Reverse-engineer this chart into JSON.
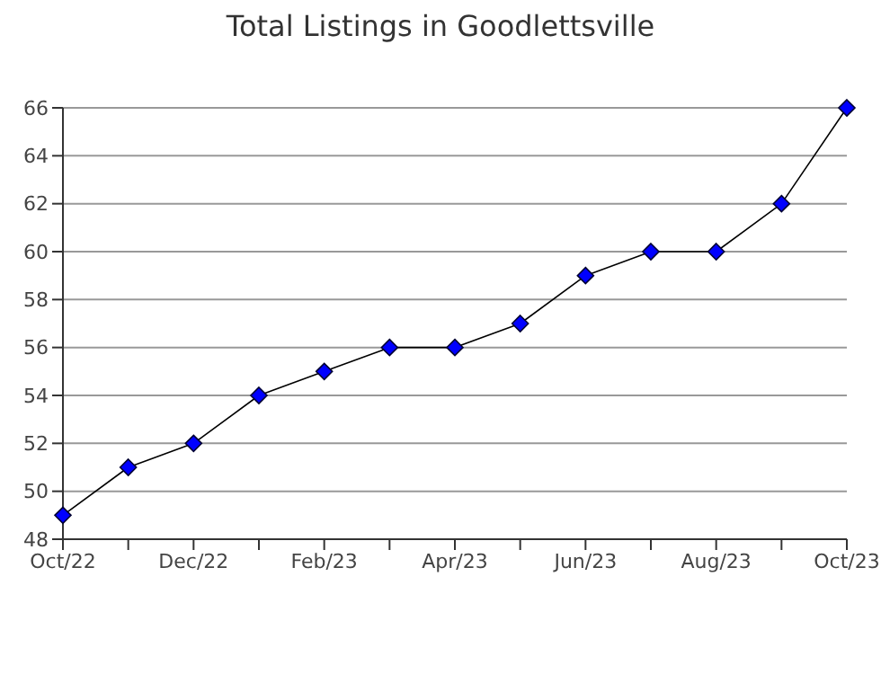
{
  "chart_data": {
    "type": "line",
    "title": "Total Listings in Goodlettsville",
    "categories": [
      "Oct/22",
      null,
      "Dec/22",
      null,
      "Feb/23",
      null,
      "Apr/23",
      null,
      "Jun/23",
      null,
      "Aug/23",
      null,
      "Oct/23"
    ],
    "series": [
      {
        "color": "#0000ff",
        "values": [
          49,
          51,
          52,
          54,
          55,
          56,
          56,
          57,
          59,
          60,
          60,
          62,
          66
        ]
      }
    ],
    "ylim": [
      48,
      66
    ],
    "yticks": [
      48,
      50,
      52,
      54,
      56,
      58,
      60,
      62,
      64,
      66
    ],
    "grid": "y",
    "marker": "diamond",
    "line_style": "solid",
    "legend": false
  }
}
